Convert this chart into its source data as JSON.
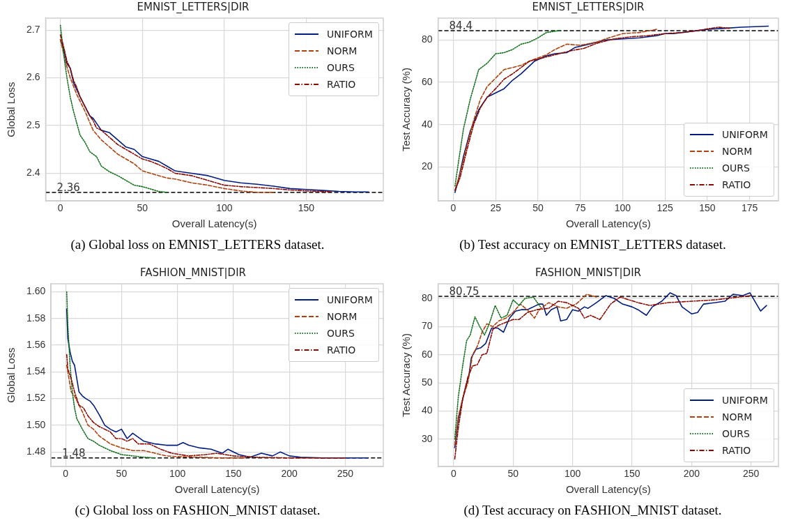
{
  "chart_data": [
    {
      "type": "line",
      "title": "EMNIST_LETTERS|DIR",
      "xlabel": "Overall Latency(s)",
      "ylabel": "Global Loss",
      "xlim": [
        -9,
        197
      ],
      "ylim": [
        2.342,
        2.725
      ],
      "xticks": [
        0,
        50,
        100,
        150
      ],
      "yticks": [
        2.4,
        2.5,
        2.6,
        2.7
      ],
      "grid": true,
      "legend": "top right",
      "marker": "none",
      "ref_lines": [
        {
          "axis": "y",
          "value": 2.36,
          "label": "2.36",
          "color": "#000000",
          "line_style": "dashed"
        }
      ],
      "annotations": [
        "(a) Global loss on EMNIST_LETTERS dataset."
      ],
      "series": [
        {
          "name": "UNIFORM",
          "color": "#001c7f",
          "line_style": "solid",
          "x": [
            0,
            2,
            4,
            6,
            8,
            10,
            12,
            15,
            18,
            20,
            22,
            25,
            30,
            35,
            40,
            45,
            50,
            55,
            60,
            65,
            70,
            80,
            90,
            100,
            110,
            120,
            130,
            140,
            150,
            160,
            170,
            180,
            188
          ],
          "values": [
            2.68,
            2.66,
            2.63,
            2.62,
            2.59,
            2.575,
            2.56,
            2.54,
            2.52,
            2.515,
            2.505,
            2.49,
            2.485,
            2.47,
            2.455,
            2.45,
            2.435,
            2.43,
            2.425,
            2.415,
            2.405,
            2.4,
            2.395,
            2.385,
            2.38,
            2.377,
            2.373,
            2.368,
            2.366,
            2.364,
            2.362,
            2.361,
            2.361
          ]
        },
        {
          "name": "NORM",
          "color": "#b1400d",
          "line_style": "dashed",
          "x": [
            0,
            3,
            6,
            10,
            15,
            20,
            25,
            30,
            35,
            40,
            45,
            50,
            55,
            60,
            65,
            70,
            80,
            90,
            100,
            110,
            120,
            130
          ],
          "values": [
            2.68,
            2.635,
            2.6,
            2.565,
            2.53,
            2.49,
            2.47,
            2.455,
            2.44,
            2.43,
            2.42,
            2.405,
            2.4,
            2.395,
            2.39,
            2.388,
            2.38,
            2.375,
            2.368,
            2.363,
            2.36,
            2.36
          ]
        },
        {
          "name": "OURS",
          "color": "#12711c",
          "line_style": "dotted",
          "x": [
            0,
            2,
            4,
            6,
            8,
            10,
            12,
            15,
            18,
            22,
            25,
            30,
            35,
            40,
            45,
            50,
            55,
            60,
            65
          ],
          "values": [
            2.71,
            2.65,
            2.6,
            2.56,
            2.53,
            2.505,
            2.48,
            2.465,
            2.445,
            2.435,
            2.415,
            2.403,
            2.395,
            2.385,
            2.375,
            2.372,
            2.367,
            2.362,
            2.36
          ]
        },
        {
          "name": "RATIO",
          "color": "#8c0800",
          "line_style": "dashdot",
          "x": [
            0,
            2,
            4,
            6,
            8,
            10,
            12,
            15,
            18,
            20,
            22,
            25,
            30,
            35,
            40,
            45,
            50,
            55,
            60,
            65,
            70,
            80,
            90,
            100,
            110,
            120,
            130,
            140,
            150,
            160,
            165
          ],
          "values": [
            2.69,
            2.665,
            2.635,
            2.62,
            2.595,
            2.58,
            2.56,
            2.54,
            2.52,
            2.51,
            2.495,
            2.49,
            2.475,
            2.46,
            2.45,
            2.44,
            2.43,
            2.425,
            2.418,
            2.41,
            2.4,
            2.395,
            2.385,
            2.375,
            2.372,
            2.37,
            2.368,
            2.365,
            2.363,
            2.362,
            2.361
          ]
        }
      ]
    },
    {
      "type": "line",
      "title": "EMNIST_LETTERS|DIR",
      "xlabel": "Overall Latency(s)",
      "ylabel": "Test Accuracy (%)",
      "xlim": [
        -9,
        192
      ],
      "ylim": [
        4,
        90.3
      ],
      "xticks": [
        0,
        25,
        50,
        75,
        100,
        125,
        150,
        175
      ],
      "yticks": [
        20,
        40,
        60,
        80
      ],
      "grid": true,
      "legend": "bottom right",
      "marker": "none",
      "ref_lines": [
        {
          "axis": "y",
          "value": 84.4,
          "label": "84.4",
          "color": "#000000",
          "line_style": "dashed"
        }
      ],
      "annotations": [
        "(b) Test accuracy on EMNIST_LETTERS dataset."
      ],
      "series": [
        {
          "name": "UNIFORM",
          "color": "#001c7f",
          "line_style": "solid",
          "x": [
            1,
            3,
            6,
            10,
            15,
            20,
            25,
            30,
            35,
            40,
            48,
            55,
            60,
            67,
            72,
            80,
            90,
            100,
            110,
            120,
            125,
            130,
            140,
            150,
            160,
            170,
            186
          ],
          "values": [
            8,
            14,
            25,
            37,
            47,
            53,
            55,
            57,
            61,
            64,
            70,
            72.5,
            73.5,
            74,
            76.5,
            78,
            80,
            80.5,
            81,
            82,
            83,
            83,
            84,
            85,
            85.5,
            86,
            86.5
          ]
        },
        {
          "name": "NORM",
          "color": "#b1400d",
          "line_style": "dashed",
          "x": [
            1,
            4,
            8,
            12,
            16,
            20,
            25,
            30,
            35,
            40,
            45,
            50,
            55,
            60,
            67,
            75,
            85,
            90,
            100,
            110,
            120
          ],
          "values": [
            9,
            17,
            30,
            42,
            52,
            58,
            62,
            66,
            67,
            68,
            70,
            71.5,
            73,
            75.5,
            78,
            77.5,
            79,
            80.5,
            83,
            83.5,
            85
          ]
        },
        {
          "name": "OURS",
          "color": "#12711c",
          "line_style": "dotted",
          "x": [
            1,
            3,
            6,
            10,
            15,
            20,
            25,
            30,
            35,
            40,
            45,
            50,
            55,
            63
          ],
          "values": [
            11,
            22,
            38,
            52,
            66,
            69,
            73.5,
            74,
            75.5,
            78,
            79,
            81,
            83.5,
            84.5
          ]
        },
        {
          "name": "RATIO",
          "color": "#8c0800",
          "line_style": "dashdot",
          "x": [
            1,
            4,
            8,
            12,
            16,
            20,
            25,
            30,
            35,
            40,
            45,
            50,
            60,
            70,
            77,
            85,
            95,
            105,
            115,
            125,
            135,
            145,
            152,
            157,
            163
          ],
          "values": [
            9,
            15,
            28,
            40,
            48,
            53,
            57,
            61.5,
            64,
            67,
            70,
            71,
            73,
            75,
            76,
            78.5,
            80.5,
            81.5,
            82,
            83,
            83.5,
            84.5,
            85.5,
            86,
            85.5
          ]
        }
      ]
    },
    {
      "type": "line",
      "title": "FASHION_MNIST|DIR",
      "xlabel": "Overall Latency(s)",
      "ylabel": "Global Loss",
      "xlim": [
        -13,
        284
      ],
      "ylim": [
        1.469,
        1.606
      ],
      "xticks": [
        0,
        50,
        100,
        150,
        200,
        250
      ],
      "yticks": [
        {
          "value": 1.48,
          "label": "1.48"
        },
        {
          "value": 1.5,
          "label": "1.50"
        },
        {
          "value": 1.52,
          "label": "1.52"
        },
        {
          "value": 1.54,
          "label": "1.54"
        },
        {
          "value": 1.56,
          "label": "1.56"
        },
        {
          "value": 1.58,
          "label": "1.58"
        },
        {
          "value": 1.6,
          "label": "1.60"
        }
      ],
      "grid": true,
      "legend": "top right",
      "marker": "none",
      "ref_lines": [
        {
          "axis": "y",
          "value": 1.4755,
          "label": "1.48",
          "color": "#000000",
          "line_style": "dashed"
        }
      ],
      "annotations": [
        "(c) Global loss on FASHION_MNIST dataset."
      ],
      "series": [
        {
          "name": "UNIFORM",
          "color": "#001c7f",
          "line_style": "solid",
          "x": [
            1,
            2,
            4,
            6,
            8,
            10,
            12,
            15,
            18,
            22,
            25,
            30,
            35,
            40,
            45,
            50,
            55,
            60,
            65,
            70,
            80,
            90,
            100,
            105,
            110,
            120,
            130,
            140,
            145,
            155,
            165,
            175,
            185,
            192,
            200,
            210,
            230,
            250,
            270
          ],
          "values": [
            1.587,
            1.565,
            1.555,
            1.548,
            1.545,
            1.535,
            1.525,
            1.522,
            1.52,
            1.518,
            1.515,
            1.508,
            1.5,
            1.497,
            1.495,
            1.497,
            1.49,
            1.494,
            1.491,
            1.488,
            1.486,
            1.485,
            1.485,
            1.487,
            1.485,
            1.483,
            1.482,
            1.479,
            1.482,
            1.478,
            1.476,
            1.479,
            1.477,
            1.48,
            1.477,
            1.476,
            1.4755,
            1.4755,
            1.4755
          ]
        },
        {
          "name": "NORM",
          "color": "#b1400d",
          "line_style": "dashed",
          "x": [
            1,
            3,
            5,
            8,
            12,
            15,
            20,
            25,
            30,
            40,
            50,
            60,
            70,
            80,
            90,
            100,
            120,
            140,
            160
          ],
          "values": [
            1.545,
            1.535,
            1.525,
            1.522,
            1.515,
            1.51,
            1.5,
            1.497,
            1.492,
            1.486,
            1.483,
            1.481,
            1.481,
            1.479,
            1.477,
            1.4765,
            1.476,
            1.4755,
            1.4755
          ]
        },
        {
          "name": "OURS",
          "color": "#12711c",
          "line_style": "dotted",
          "x": [
            1,
            2,
            4,
            6,
            8,
            10,
            15,
            20,
            25,
            30,
            40,
            50,
            60,
            70,
            80
          ],
          "values": [
            1.6,
            1.575,
            1.545,
            1.525,
            1.513,
            1.505,
            1.497,
            1.49,
            1.488,
            1.485,
            1.481,
            1.478,
            1.477,
            1.476,
            1.4755
          ]
        },
        {
          "name": "RATIO",
          "color": "#8c0800",
          "line_style": "dashdot",
          "x": [
            1,
            2,
            5,
            8,
            12,
            16,
            20,
            25,
            30,
            40,
            45,
            50,
            55,
            60,
            65,
            75,
            85,
            95,
            110,
            125,
            135,
            150,
            170,
            200,
            230,
            250
          ],
          "values": [
            1.553,
            1.542,
            1.535,
            1.525,
            1.515,
            1.513,
            1.507,
            1.502,
            1.499,
            1.495,
            1.49,
            1.49,
            1.488,
            1.49,
            1.486,
            1.486,
            1.482,
            1.479,
            1.477,
            1.478,
            1.479,
            1.477,
            1.476,
            1.4755,
            1.4755,
            1.4755
          ]
        }
      ]
    },
    {
      "type": "line",
      "title": "FASHION_MNIST|DIR",
      "xlabel": "Overall Latency(s)",
      "ylabel": "Test Accuracy (%)",
      "xlim": [
        -13,
        273
      ],
      "ylim": [
        20.3,
        85.2
      ],
      "xticks": [
        0,
        50,
        100,
        150,
        200,
        250
      ],
      "yticks": [
        30,
        40,
        50,
        60,
        70,
        80
      ],
      "grid": true,
      "legend": "bottom right",
      "marker": "none",
      "ref_lines": [
        {
          "axis": "y",
          "value": 80.75,
          "label": "80.75",
          "color": "#000000",
          "line_style": "dashed"
        }
      ],
      "annotations": [
        "(d) Test accuracy on FASHION_MNIST dataset."
      ],
      "series": [
        {
          "name": "UNIFORM",
          "color": "#001c7f",
          "line_style": "solid",
          "x": [
            1,
            4,
            7,
            10,
            13,
            15,
            19,
            23,
            27,
            32,
            37,
            42,
            47,
            52,
            57,
            62,
            67,
            72,
            75,
            78,
            82,
            87,
            90,
            95,
            100,
            105,
            110,
            113,
            120,
            128,
            135,
            142,
            150,
            155,
            162,
            167,
            175,
            182,
            187,
            192,
            200,
            205,
            210,
            220,
            228,
            235,
            243,
            249,
            258,
            263
          ],
          "values": [
            27,
            37,
            43,
            48,
            53,
            59,
            62,
            62.5,
            64,
            69.5,
            69.5,
            68,
            73,
            75.5,
            76,
            76,
            77,
            78,
            78,
            74,
            76,
            77,
            72,
            72.5,
            76,
            75.5,
            77,
            76.5,
            78.5,
            81,
            80,
            78,
            77,
            76,
            74,
            77,
            79,
            82,
            81,
            77,
            74.5,
            75,
            78,
            78.5,
            79,
            81.5,
            81,
            82,
            75.5,
            77.5
          ]
        },
        {
          "name": "NORM",
          "color": "#b1400d",
          "line_style": "dashed",
          "x": [
            1,
            4,
            8,
            12,
            16,
            20,
            24,
            28,
            33,
            38,
            44,
            50,
            56,
            62,
            68,
            72,
            80,
            88,
            95,
            103,
            112,
            120
          ],
          "values": [
            28,
            38,
            45,
            50,
            60,
            63,
            68,
            71,
            70,
            72,
            73,
            75,
            78,
            76,
            73,
            76,
            78.5,
            77,
            76.5,
            78,
            81.5,
            80.5
          ]
        },
        {
          "name": "OURS",
          "color": "#12711c",
          "line_style": "dotted",
          "x": [
            1,
            4,
            8,
            11,
            14,
            18,
            22,
            26,
            30,
            35,
            40,
            45,
            50,
            55,
            60,
            67,
            73
          ],
          "values": [
            30,
            45,
            57,
            65,
            67,
            73.5,
            70,
            67,
            71,
            77.5,
            73,
            74,
            79.5,
            77.5,
            80,
            80.5,
            77
          ]
        },
        {
          "name": "RATIO",
          "color": "#8c0800",
          "line_style": "dashdot",
          "x": [
            1,
            4,
            8,
            12,
            16,
            20,
            24,
            28,
            33,
            38,
            44,
            50,
            55,
            62,
            70,
            80,
            88,
            95,
            105,
            110,
            115,
            123,
            132,
            140,
            155,
            165,
            180,
            200,
            220,
            240,
            250
          ],
          "values": [
            23,
            34,
            45,
            52,
            56,
            56.5,
            60,
            60.5,
            69,
            70.5,
            71.5,
            72.5,
            72.5,
            75,
            76,
            76.5,
            79,
            78.5,
            76.5,
            73,
            74,
            72.5,
            78,
            80.5,
            78.5,
            77.5,
            78.5,
            79,
            79.5,
            80.5,
            81
          ]
        }
      ]
    }
  ]
}
